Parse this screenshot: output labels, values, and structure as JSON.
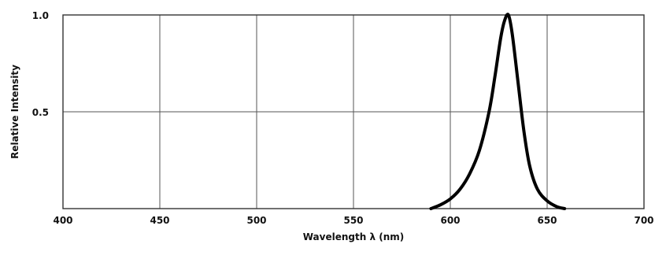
{
  "chart_data": {
    "type": "line",
    "title": "",
    "xlabel": "Wavelength λ (nm)",
    "ylabel": "Relative Intensity",
    "xlim": [
      400,
      700
    ],
    "ylim": [
      0,
      1.0
    ],
    "x_ticks": [
      400,
      450,
      500,
      550,
      600,
      650,
      700
    ],
    "x_tick_labels": [
      "400",
      "450",
      "500",
      "550",
      "600",
      "650",
      "700"
    ],
    "y_ticks": [
      0.5,
      1.0
    ],
    "y_tick_labels": [
      "0.5",
      "1.0"
    ],
    "grid": true,
    "legend": "none",
    "colors": {
      "line": "#000000",
      "grid": "#555555"
    },
    "series": [
      {
        "x": [
          590,
          595,
          600,
          605,
          610,
          615,
          620,
          623,
          626,
          628,
          630,
          632,
          635,
          638,
          641,
          645,
          650,
          655,
          659
        ],
        "y": [
          0.0,
          0.02,
          0.05,
          0.1,
          0.18,
          0.3,
          0.5,
          0.68,
          0.88,
          0.97,
          1.0,
          0.9,
          0.65,
          0.4,
          0.22,
          0.1,
          0.04,
          0.01,
          0.0
        ]
      }
    ]
  }
}
